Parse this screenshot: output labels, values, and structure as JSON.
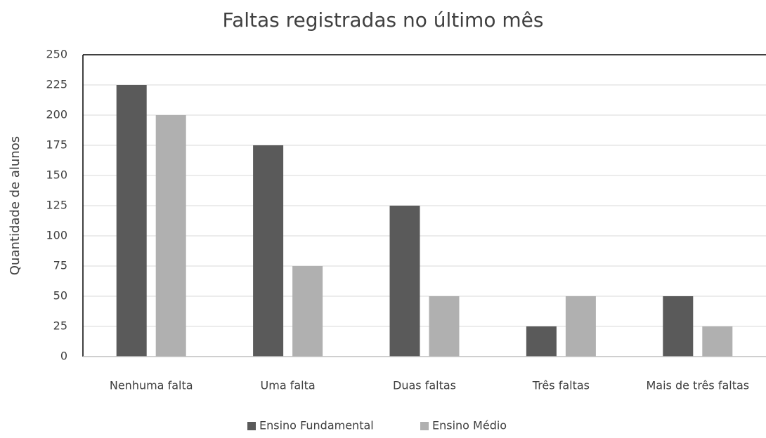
{
  "chart_data": {
    "type": "bar",
    "title": "Faltas registradas no último mês",
    "y_label": "Quantidade de alunos",
    "categories": [
      "Nenhuma falta",
      "Uma falta",
      "Duas faltas",
      "Três faltas",
      "Mais de três faltas"
    ],
    "series": [
      {
        "name": "Ensino Fundamental",
        "color": "#5a5a5a",
        "values": [
          225,
          175,
          125,
          25,
          50
        ]
      },
      {
        "name": "Ensino Médio",
        "color": "#b0b0b0",
        "values": [
          200,
          75,
          50,
          50,
          25
        ]
      }
    ],
    "ylim": [
      0,
      250
    ],
    "yticks": [
      0,
      25,
      50,
      75,
      100,
      125,
      150,
      175,
      200,
      225,
      250
    ],
    "grid": true,
    "legend": "bottom"
  }
}
